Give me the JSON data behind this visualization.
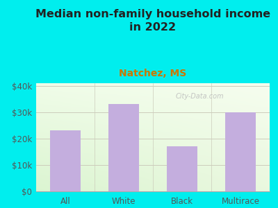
{
  "categories": [
    "All",
    "White",
    "Black",
    "Multirace"
  ],
  "values": [
    23000,
    33000,
    17000,
    30000
  ],
  "bar_color": "#c4aede",
  "title": "Median non-family household income\nin 2022",
  "subtitle": "Natchez, MS",
  "subtitle_color": "#cc7700",
  "title_color": "#222222",
  "background_color": "#00eeee",
  "ylabel_ticks": [
    0,
    10000,
    20000,
    30000,
    40000
  ],
  "ylabel_labels": [
    "$0",
    "$10k",
    "$20k",
    "$30k",
    "$40k"
  ],
  "ylim": [
    0,
    41000
  ],
  "title_fontsize": 11.5,
  "subtitle_fontsize": 10,
  "tick_fontsize": 8.5,
  "watermark": "City-Data.com",
  "grid_color": "#ddddcc",
  "bar_width": 0.52
}
